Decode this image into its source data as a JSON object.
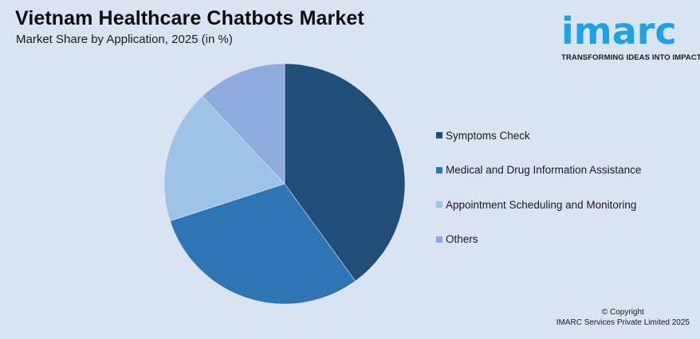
{
  "header": {
    "title": "Vietnam Healthcare Chatbots Market",
    "subtitle": "Market Share by Application, 2025 (in %)"
  },
  "logo": {
    "wordmark": "imarc",
    "tagline": "TRANSFORMING IDEAS INTO IMPACT",
    "color": "#1aa3e8"
  },
  "chart_data": {
    "type": "pie",
    "title": "Vietnam Healthcare Chatbots Market",
    "subtitle": "Market Share by Application, 2025 (in %)",
    "categories": [
      "Symptoms Check",
      "Medical and Drug Information Assistance",
      "Appointment Scheduling and Monitoring",
      "Others"
    ],
    "values": [
      40,
      30,
      18,
      12
    ],
    "colors": [
      "#1f4e79",
      "#2e75b6",
      "#9dc3e6",
      "#8faadc"
    ],
    "start_angle_deg": 0,
    "direction": "clockwise",
    "legend_position": "right",
    "data_labels": false
  },
  "legend": {
    "items": [
      {
        "label": "Symptoms Check",
        "color": "#1f4e79"
      },
      {
        "label": "Medical and Drug Information Assistance",
        "color": "#2e75b6"
      },
      {
        "label": "Appointment Scheduling and Monitoring",
        "color": "#9dc3e6"
      },
      {
        "label": "Others",
        "color": "#8faadc"
      }
    ]
  },
  "footer": {
    "copyright_line1": "© Copyright",
    "copyright_line2": "IMARC Services Private Limited 2025"
  }
}
